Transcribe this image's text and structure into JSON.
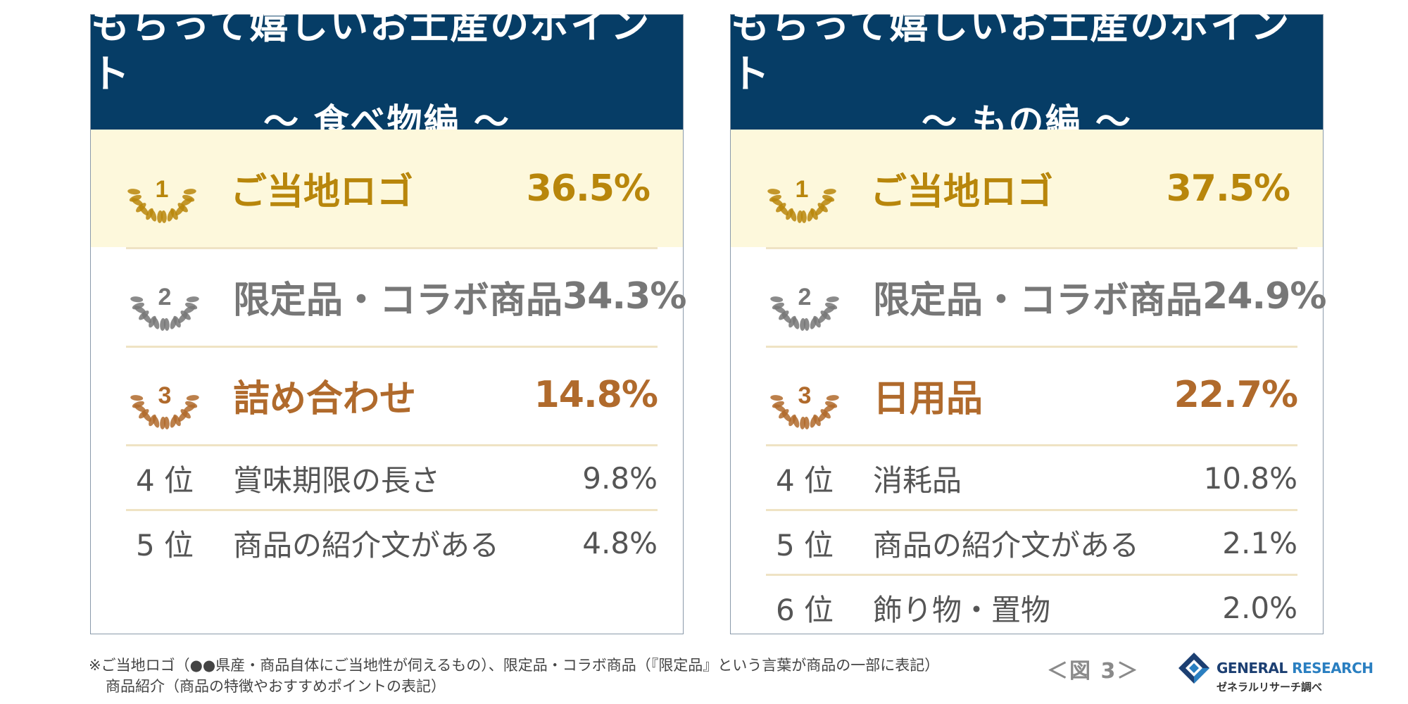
{
  "chart_data": [
    {
      "type": "table",
      "title": "もらって嬉しいお土産のポイント",
      "subtitle": "～ 食べ物編 ～",
      "rows": [
        {
          "rank": 1,
          "rank_label": "1",
          "item": "ご当地ロゴ",
          "value": "36.5%",
          "percent": 36.5,
          "tier": "gold"
        },
        {
          "rank": 2,
          "rank_label": "2",
          "item": "限定品・コラボ商品",
          "value": "34.3%",
          "percent": 34.3,
          "tier": "silver"
        },
        {
          "rank": 3,
          "rank_label": "3",
          "item": "詰め合わせ",
          "value": "14.8%",
          "percent": 14.8,
          "tier": "bronze"
        },
        {
          "rank": 4,
          "rank_label": "4 位",
          "item": "賞味期限の長さ",
          "value": "9.8%",
          "percent": 9.8
        },
        {
          "rank": 5,
          "rank_label": "5 位",
          "item": "商品の紹介文がある",
          "value": "4.8%",
          "percent": 4.8
        }
      ]
    },
    {
      "type": "table",
      "title": "もらって嬉しいお土産のポイント",
      "subtitle": "～ もの編 ～",
      "rows": [
        {
          "rank": 1,
          "rank_label": "1",
          "item": "ご当地ロゴ",
          "value": "37.5%",
          "percent": 37.5,
          "tier": "gold"
        },
        {
          "rank": 2,
          "rank_label": "2",
          "item": "限定品・コラボ商品",
          "value": "24.9%",
          "percent": 24.9,
          "tier": "silver"
        },
        {
          "rank": 3,
          "rank_label": "3",
          "item": "日用品",
          "value": "22.7%",
          "percent": 22.7,
          "tier": "bronze"
        },
        {
          "rank": 4,
          "rank_label": "4 位",
          "item": "消耗品",
          "value": "10.8%",
          "percent": 10.8
        },
        {
          "rank": 5,
          "rank_label": "5 位",
          "item": "商品の紹介文がある",
          "value": "2.1%",
          "percent": 2.1
        },
        {
          "rank": 6,
          "rank_label": "6 位",
          "item": "飾り物・置物",
          "value": "2.0%",
          "percent": 2.0
        }
      ]
    }
  ],
  "colors": {
    "header_bg": "#063d66",
    "first_row_bg": "#fdf8dc",
    "gold": "#b8860b",
    "silver": "#777777",
    "bronze": "#b06a2c"
  },
  "footnote": {
    "line1": "※ご当地ロゴ（●●県産・商品自体にご当地性が伺えるもの）、限定品・コラボ商品（『限定品』という言葉が商品の一部に表記）",
    "line2": "商品紹介（商品の特徴やおすすめポイントの表記）"
  },
  "figure_label": "＜図 3＞",
  "brand": {
    "name_part1": "GENERAL",
    "name_part2": "RESEARCH",
    "tagline": "ゼネラルリサーチ調べ",
    "mark_icon": "general-research-logo-mark"
  }
}
